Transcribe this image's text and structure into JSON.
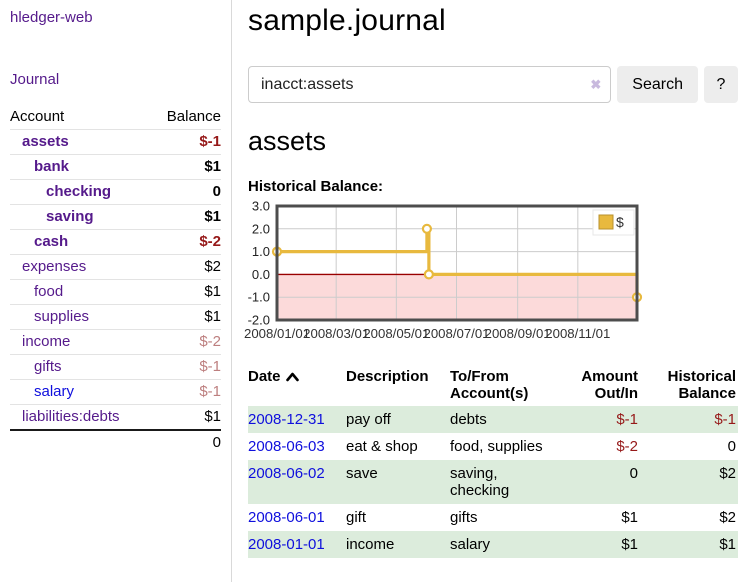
{
  "app": {
    "title": "hledger-web",
    "nav_journal": "Journal"
  },
  "colors": {
    "link_purple": "#551A8B",
    "link_blue": "#0f0fdd",
    "negative_strong": "#961919",
    "negative_muted": "#bd7f7f",
    "stripe_green": "#dcecdc",
    "chart_gold": "#e8b93e",
    "chart_pink": "#fcdada",
    "chart_zero": "#990000"
  },
  "sidebar": {
    "columns": {
      "account": "Account",
      "balance": "Balance"
    },
    "accounts": [
      {
        "name": "assets",
        "level": 1,
        "bold": true,
        "balance": "$-1",
        "balance_style": "neg-strong"
      },
      {
        "name": "bank",
        "level": 2,
        "bold": true,
        "balance": "$1",
        "balance_style": ""
      },
      {
        "name": "checking",
        "level": 3,
        "bold": true,
        "balance": "0",
        "balance_style": ""
      },
      {
        "name": "saving",
        "level": 3,
        "bold": true,
        "balance": "$1",
        "balance_style": ""
      },
      {
        "name": "cash",
        "level": 2,
        "bold": true,
        "balance": "$-2",
        "balance_style": "neg-strong"
      },
      {
        "name": "expenses",
        "level": 1,
        "bold": false,
        "balance": "$2",
        "balance_style": ""
      },
      {
        "name": "food",
        "level": 2,
        "bold": false,
        "balance": "$1",
        "balance_style": ""
      },
      {
        "name": "supplies",
        "level": 2,
        "bold": false,
        "balance": "$1",
        "balance_style": ""
      },
      {
        "name": "income",
        "level": 1,
        "bold": false,
        "balance": "$-2",
        "balance_style": "neg-muted"
      },
      {
        "name": "gifts",
        "level": 2,
        "bold": false,
        "balance": "$-1",
        "balance_style": "neg-muted"
      },
      {
        "name": "salary",
        "level": 2,
        "bold": false,
        "balance": "$-1",
        "balance_style": "neg-muted",
        "unvisited": true
      },
      {
        "name": "liabilities:debts",
        "level": 1,
        "bold": false,
        "balance": "$1",
        "balance_style": ""
      }
    ],
    "total": "0"
  },
  "header": {
    "title": "sample.journal"
  },
  "search": {
    "value": "inacct:assets",
    "clear_icon": "✖",
    "button": "Search",
    "help_button": "?"
  },
  "account_page": {
    "heading": "assets",
    "chart_title": "Historical Balance:"
  },
  "chart_data": {
    "type": "line",
    "step": true,
    "title": "Historical Balance:",
    "series": [
      {
        "name": "$",
        "color": "#e8b93e",
        "points": [
          {
            "date": "2008/01/01",
            "value": 1
          },
          {
            "date": "2008/06/01",
            "value": 2
          },
          {
            "date": "2008/06/03",
            "value": 0
          },
          {
            "date": "2008/12/31",
            "value": -1
          }
        ]
      }
    ],
    "x_ticks": [
      "2008/01/01",
      "2008/03/01",
      "2008/05/01",
      "2008/07/01",
      "2008/09/01",
      "2008/11/01"
    ],
    "y_ticks": [
      "3.0",
      "2.0",
      "1.0",
      "0.0",
      "-1.0",
      "-2.0"
    ],
    "ylim": [
      -2.0,
      3.0
    ],
    "grid": true,
    "legend": {
      "label": "$",
      "position": "ne"
    },
    "negative_region_color": "#fcdada",
    "zero_line_color": "#990000"
  },
  "transactions": {
    "columns": [
      "Date",
      "Description",
      "To/From Account(s)",
      "Amount Out/In",
      "Historical Balance"
    ],
    "sort": {
      "column": "Date",
      "direction": "asc"
    },
    "rows": [
      {
        "date": "2008-12-31",
        "description": "pay off",
        "accounts": "debts",
        "amount": "$-1",
        "amount_negative": true,
        "balance": "$-1",
        "balance_negative": true,
        "shaded": true
      },
      {
        "date": "2008-06-03",
        "description": "eat & shop",
        "accounts": "food, supplies",
        "amount": "$-2",
        "amount_negative": true,
        "balance": "0",
        "balance_negative": false,
        "shaded": false
      },
      {
        "date": "2008-06-02",
        "description": "save",
        "accounts": "saving, checking",
        "amount": "0",
        "amount_negative": false,
        "balance": "$2",
        "balance_negative": false,
        "shaded": true
      },
      {
        "date": "2008-06-01",
        "description": "gift",
        "accounts": "gifts",
        "amount": "$1",
        "amount_negative": false,
        "balance": "$2",
        "balance_negative": false,
        "shaded": false
      },
      {
        "date": "2008-01-01",
        "description": "income",
        "accounts": "salary",
        "amount": "$1",
        "amount_negative": false,
        "balance": "$1",
        "balance_negative": false,
        "shaded": true
      }
    ]
  }
}
